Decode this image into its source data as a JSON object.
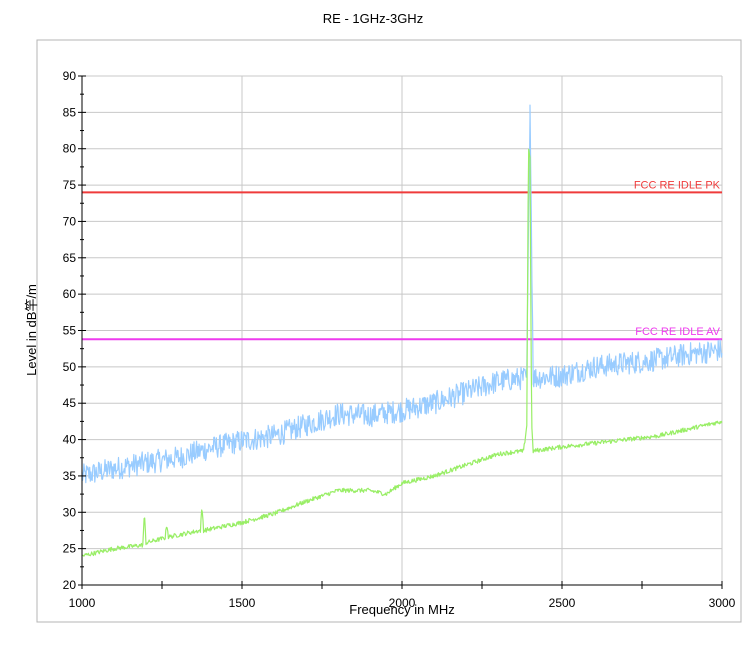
{
  "chart_data": {
    "type": "line",
    "title": "RE - 1GHz-3GHz",
    "xlabel": "Frequency in MHz",
    "ylabel": "Level in dB竿/m",
    "xlim": [
      1000,
      3000
    ],
    "ylim": [
      20,
      90
    ],
    "x_ticks": [
      1000,
      1500,
      2000,
      2500,
      3000
    ],
    "y_ticks": [
      20,
      25,
      30,
      35,
      40,
      45,
      50,
      55,
      60,
      65,
      70,
      75,
      80,
      85,
      90
    ],
    "grid": true,
    "limit_lines": [
      {
        "name": "FCC RE IDLE PK",
        "value": 74,
        "color": "#ef3b3b"
      },
      {
        "name": "FCC RE IDLE AV",
        "value": 53.8,
        "color": "#ee3bee"
      }
    ],
    "series": [
      {
        "color": "#99ccff",
        "noise": 1.6,
        "x": [
          1000,
          1100,
          1200,
          1300,
          1400,
          1500,
          1600,
          1700,
          1800,
          1900,
          2000,
          2100,
          2200,
          2300,
          2390,
          2400,
          2410,
          2500,
          2600,
          2700,
          2800,
          2900,
          3000
        ],
        "y": [
          35,
          36,
          36.8,
          37.5,
          38.8,
          39.8,
          40.5,
          42,
          43.5,
          43.3,
          44,
          45,
          46.5,
          48,
          48.5,
          86,
          48.5,
          48.8,
          50,
          50.5,
          51,
          51.8,
          52.3
        ]
      },
      {
        "color": "#99ee66",
        "noise": 0.3,
        "x": [
          1000,
          1100,
          1190,
          1195,
          1200,
          1260,
          1265,
          1270,
          1370,
          1375,
          1380,
          1500,
          1600,
          1700,
          1800,
          1900,
          1950,
          2000,
          2100,
          2200,
          2300,
          2350,
          2380,
          2390,
          2395,
          2400,
          2405,
          2410,
          2420,
          2500,
          2600,
          2700,
          2800,
          2900,
          3000
        ],
        "y": [
          24,
          25,
          25.5,
          29.8,
          25.8,
          26.5,
          28.5,
          26.6,
          27.5,
          30.8,
          27.5,
          28.6,
          29.8,
          31.5,
          33,
          33,
          32.5,
          34,
          35,
          36.5,
          38,
          38.3,
          38.4,
          42,
          80,
          79,
          42,
          38.4,
          38.5,
          39,
          39.5,
          40,
          40.5,
          41.5,
          42.5
        ]
      }
    ]
  }
}
